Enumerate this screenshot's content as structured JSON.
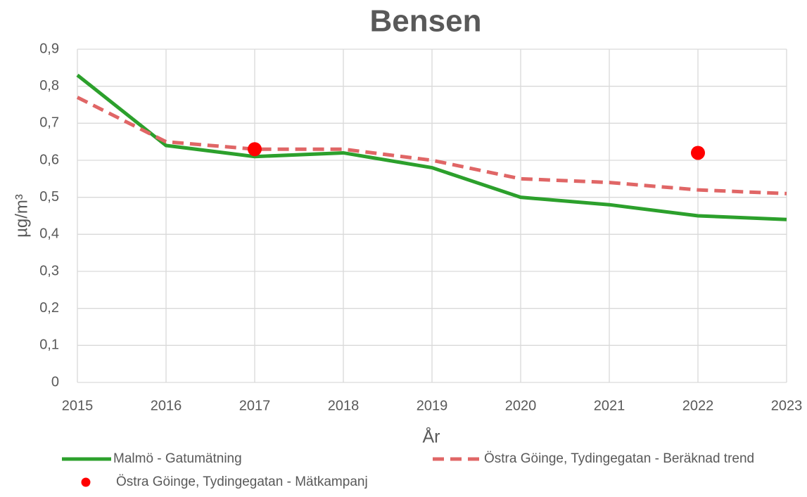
{
  "chart_data": {
    "type": "line",
    "title": "Bensen",
    "xlabel": "År",
    "ylabel": "µg/m³",
    "x": [
      2015,
      2016,
      2017,
      2018,
      2019,
      2020,
      2021,
      2022,
      2023
    ],
    "xlim": [
      2015,
      2023
    ],
    "xticks": [
      2015,
      2016,
      2017,
      2018,
      2019,
      2020,
      2021,
      2022,
      2023
    ],
    "ylim": [
      0,
      0.9
    ],
    "yticks": [
      0,
      {
        "value": 0.1,
        "label": "0,1"
      },
      {
        "value": 0.2,
        "label": "0,2"
      },
      {
        "value": 0.3,
        "label": "0,3"
      },
      {
        "value": 0.4,
        "label": "0,4"
      },
      {
        "value": 0.5,
        "label": "0,5"
      },
      {
        "value": 0.6,
        "label": "0,6"
      },
      {
        "value": 0.7,
        "label": "0,7"
      },
      {
        "value": 0.8,
        "label": "0,8"
      },
      {
        "value": 0.9,
        "label": "0,9"
      }
    ],
    "grid": true,
    "series": [
      {
        "name": "Malmö - Gatumätning",
        "type": "line",
        "style": "solid",
        "color": "#2ca02c",
        "values": [
          0.83,
          0.64,
          0.61,
          0.62,
          0.58,
          0.5,
          0.48,
          0.45,
          0.44
        ]
      },
      {
        "name": "Östra Göinge, Tydingegatan - Beräknad trend",
        "type": "line",
        "style": "dashed",
        "color": "#e06666",
        "values": [
          0.77,
          0.65,
          0.63,
          0.63,
          0.6,
          0.55,
          0.54,
          0.52,
          0.51
        ]
      },
      {
        "name": "Östra Göinge, Tydingegatan  - Mätkampanj",
        "type": "scatter",
        "color": "#ff0000",
        "values": [
          null,
          null,
          0.63,
          null,
          null,
          null,
          null,
          0.62,
          null
        ]
      }
    ]
  }
}
